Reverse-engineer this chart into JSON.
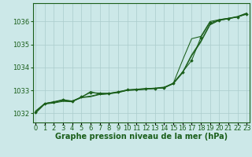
{
  "bg_color": "#cce8e8",
  "grid_color": "#aacccc",
  "line_color": "#1a5e1a",
  "marker_color": "#1a5e1a",
  "xlabel": "Graphe pression niveau de la mer (hPa)",
  "xlabel_fontsize": 7,
  "tick_fontsize": 6,
  "yticks": [
    1032,
    1033,
    1034,
    1035,
    1036
  ],
  "xticks": [
    0,
    1,
    2,
    3,
    4,
    5,
    6,
    7,
    8,
    9,
    10,
    11,
    12,
    13,
    14,
    15,
    16,
    17,
    18,
    19,
    20,
    21,
    22,
    23
  ],
  "ylim": [
    1031.6,
    1036.8
  ],
  "xlim": [
    -0.3,
    23.3
  ],
  "series_smooth1": [
    1032.05,
    1032.42,
    1032.48,
    1032.55,
    1032.52,
    1032.68,
    1032.72,
    1032.82,
    1032.85,
    1032.92,
    1033.0,
    1033.02,
    1033.05,
    1033.08,
    1033.12,
    1033.28,
    1033.75,
    1034.5,
    1035.1,
    1035.85,
    1036.05,
    1036.12,
    1036.2,
    1036.35
  ],
  "series_smooth2": [
    1032.1,
    1032.43,
    1032.5,
    1032.57,
    1032.54,
    1032.7,
    1032.75,
    1032.84,
    1032.87,
    1032.94,
    1033.02,
    1033.04,
    1033.07,
    1033.1,
    1033.14,
    1033.3,
    1033.78,
    1034.55,
    1035.15,
    1035.88,
    1036.08,
    1036.14,
    1036.22,
    1036.37
  ],
  "series_marker": [
    1032.05,
    1032.42,
    1032.5,
    1032.6,
    1032.52,
    1032.72,
    1032.9,
    1032.88,
    1032.87,
    1032.92,
    1033.02,
    1033.05,
    1033.08,
    1033.08,
    1033.12,
    1033.32,
    1033.8,
    1034.3,
    1035.3,
    1035.95,
    1036.05,
    1036.12,
    1036.2,
    1036.32
  ],
  "series_jagged": [
    1032.0,
    1032.4,
    1032.45,
    1032.52,
    1032.5,
    1032.7,
    1032.95,
    1032.82,
    1032.85,
    1032.9,
    1033.0,
    1033.02,
    1033.05,
    1033.08,
    1033.1,
    1033.3,
    1034.3,
    1035.25,
    1035.35,
    1036.0,
    1036.08,
    1036.14,
    1036.2,
    1036.33
  ]
}
